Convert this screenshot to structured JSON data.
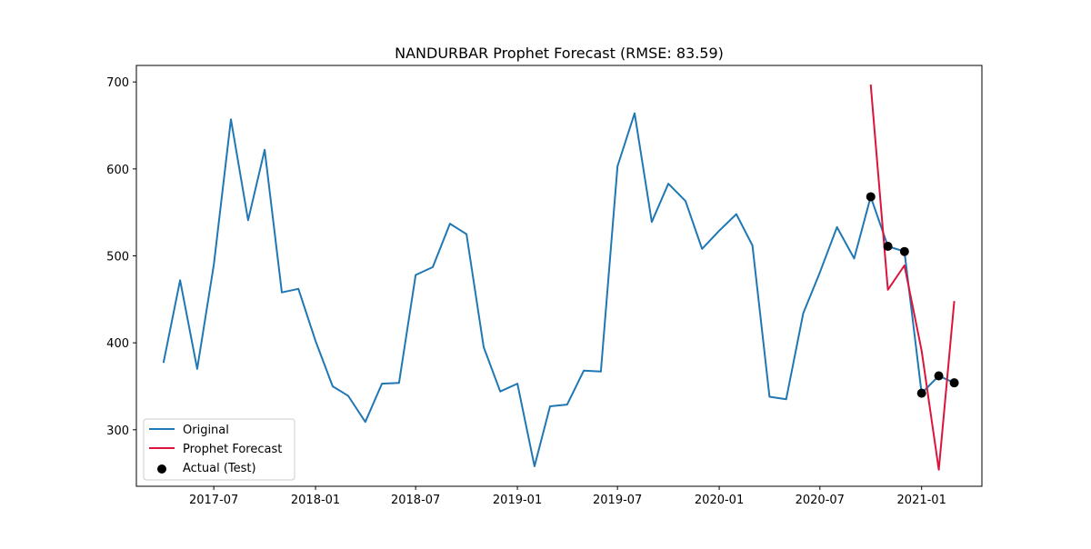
{
  "chart_data": {
    "type": "line",
    "title": "NANDURBAR Prophet Forecast (RMSE: 83.59)",
    "xlabel": "",
    "ylabel": "",
    "xlim": [
      "2017-02-11",
      "2021-04-20"
    ],
    "ylim": [
      235,
      719
    ],
    "x_ticks": [
      {
        "date": "2017-07-01",
        "label": "2017-07"
      },
      {
        "date": "2018-01-01",
        "label": "2018-01"
      },
      {
        "date": "2018-07-01",
        "label": "2018-07"
      },
      {
        "date": "2019-01-01",
        "label": "2019-01"
      },
      {
        "date": "2019-07-01",
        "label": "2019-07"
      },
      {
        "date": "2020-01-01",
        "label": "2020-01"
      },
      {
        "date": "2020-07-01",
        "label": "2020-07"
      },
      {
        "date": "2021-01-01",
        "label": "2021-01"
      }
    ],
    "y_ticks": [
      300,
      400,
      500,
      600,
      700
    ],
    "grid": false,
    "legend_position": "lower-left",
    "series": [
      {
        "name": "Original",
        "kind": "line",
        "color": "#1f77b4",
        "x": [
          "2017-04-01",
          "2017-05-01",
          "2017-06-01",
          "2017-07-01",
          "2017-08-01",
          "2017-09-01",
          "2017-10-01",
          "2017-11-01",
          "2017-12-01",
          "2018-01-01",
          "2018-02-01",
          "2018-03-01",
          "2018-04-01",
          "2018-05-01",
          "2018-06-01",
          "2018-07-01",
          "2018-08-01",
          "2018-09-01",
          "2018-10-01",
          "2018-11-01",
          "2018-12-01",
          "2019-01-01",
          "2019-02-01",
          "2019-03-01",
          "2019-04-01",
          "2019-05-01",
          "2019-06-01",
          "2019-07-01",
          "2019-08-01",
          "2019-09-01",
          "2019-10-01",
          "2019-11-01",
          "2019-12-01",
          "2020-01-01",
          "2020-02-01",
          "2020-03-01",
          "2020-04-01",
          "2020-05-01",
          "2020-06-01",
          "2020-07-01",
          "2020-08-01",
          "2020-09-01",
          "2020-10-01",
          "2020-11-01",
          "2020-12-01",
          "2021-01-01",
          "2021-02-01",
          "2021-03-01"
        ],
        "y": [
          377,
          472,
          370,
          490,
          657,
          541,
          622,
          458,
          462,
          402,
          350,
          339,
          309,
          353,
          354,
          478,
          487,
          537,
          525,
          395,
          344,
          353,
          258,
          327,
          329,
          368,
          367,
          603,
          664,
          539,
          583,
          563,
          508,
          529,
          548,
          512,
          338,
          335,
          434,
          481,
          533,
          497,
          568,
          511,
          505,
          342,
          362,
          354
        ]
      },
      {
        "name": "Prophet Forecast",
        "kind": "line",
        "color": "#dc143c",
        "x": [
          "2020-10-01",
          "2020-11-01",
          "2020-12-01",
          "2021-01-01",
          "2021-02-01",
          "2021-03-01"
        ],
        "y": [
          697,
          461,
          489,
          391,
          254,
          448
        ]
      },
      {
        "name": "Actual (Test)",
        "kind": "scatter",
        "color": "#000000",
        "x": [
          "2020-10-01",
          "2020-11-01",
          "2020-12-01",
          "2021-01-01",
          "2021-02-01",
          "2021-03-01"
        ],
        "y": [
          568,
          511,
          505,
          342,
          362,
          354
        ]
      }
    ]
  }
}
